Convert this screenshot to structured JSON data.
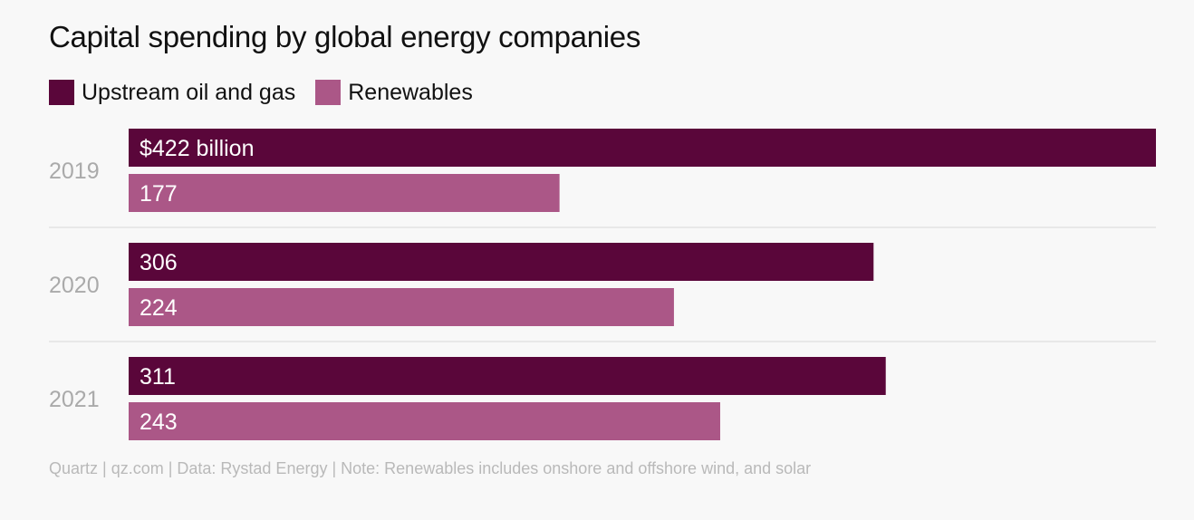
{
  "chart_data": {
    "type": "bar",
    "orientation": "horizontal",
    "title": "Capital spending by global energy companies",
    "categories": [
      "2019",
      "2020",
      "2021"
    ],
    "series": [
      {
        "name": "Upstream oil and gas",
        "values": [
          422,
          306,
          311
        ],
        "labels": [
          "$422 billion",
          "306",
          "311"
        ],
        "color": "#5a063a"
      },
      {
        "name": "Renewables",
        "values": [
          177,
          224,
          243
        ],
        "labels": [
          "177",
          "224",
          "243"
        ],
        "color": "#ab5787"
      }
    ],
    "xlim": [
      0,
      422
    ],
    "grid": false,
    "legend_position": "top-left",
    "source": "Quartz | qz.com | Data: Rystad Energy | Note: Renewables includes onshore and offshore wind, and solar"
  },
  "colors": {
    "background": "#f8f8f8",
    "category_label": "#aaaaaa",
    "separator": "#e3e3e3",
    "bar_label": "#ffffff"
  }
}
